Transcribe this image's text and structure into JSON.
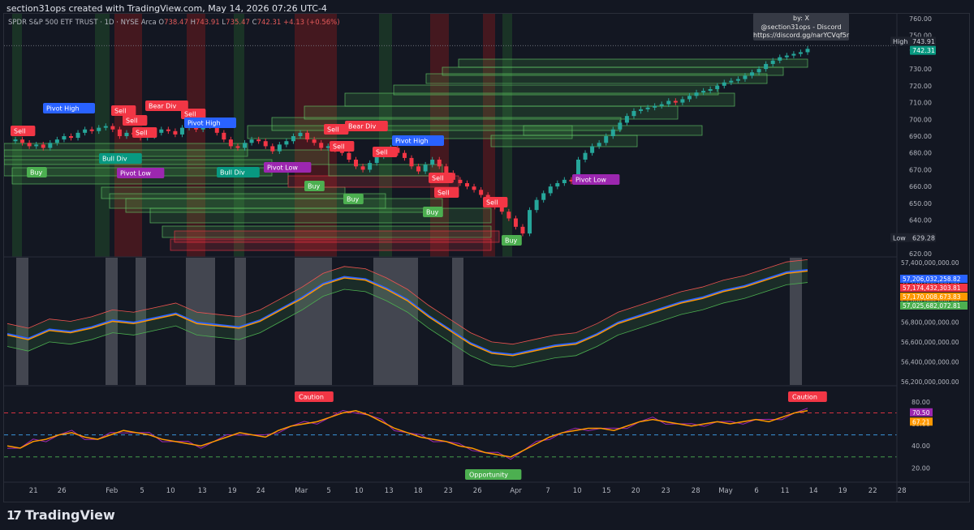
{
  "credit": "section31ops created with TradingView.com, May 14, 2026 07:26 UTC-4",
  "legend": {
    "symbol": "SPDR S&P 500 ETF TRUST · 1D · NYSE Arca",
    "o_label": "O",
    "o": "738.47",
    "h_label": "H",
    "h": "743.91",
    "l_label": "L",
    "l": "735.47",
    "c_label": "C",
    "c": "742.31",
    "change": "+4.13 (+0.56%)"
  },
  "watermark": {
    "line1": "by: X",
    "line2": "@section31ops - Discord",
    "line3": "https://discord.gg/narYCVqf5r"
  },
  "price_pane": {
    "axis_ticks": [
      "760.00",
      "750.00",
      "740.00",
      "730.00",
      "720.00",
      "710.00",
      "700.00",
      "690.00",
      "680.00",
      "670.00",
      "660.00",
      "650.00",
      "640.00",
      "630.00",
      "620.00"
    ],
    "high_label": "High",
    "high_value": "743.91",
    "last_value": "742.31",
    "low_label": "Low",
    "low_value": "629.28",
    "signals": [
      {
        "text": "Sell",
        "color": "#f23645"
      },
      {
        "text": "Pivot High",
        "color": "#2962ff"
      },
      {
        "text": "Sell",
        "color": "#f23645"
      },
      {
        "text": "Sell",
        "color": "#f23645"
      },
      {
        "text": "Sell",
        "color": "#f23645"
      },
      {
        "text": "Bear Div",
        "color": "#f23645"
      },
      {
        "text": "Sell",
        "color": "#f23645"
      },
      {
        "text": "Pivot High",
        "color": "#2962ff"
      },
      {
        "text": "Bull Div",
        "color": "#089981"
      },
      {
        "text": "Pivot Low",
        "color": "#9c27b0"
      },
      {
        "text": "Buy",
        "color": "#4caf50"
      },
      {
        "text": "Bull Div",
        "color": "#089981"
      },
      {
        "text": "Pivot Low",
        "color": "#9c27b0"
      },
      {
        "text": "Sell",
        "color": "#f23645"
      },
      {
        "text": "Bear Div",
        "color": "#f23645"
      },
      {
        "text": "Sell",
        "color": "#f23645"
      },
      {
        "text": "Sell",
        "color": "#f23645"
      },
      {
        "text": "Pivot High",
        "color": "#2962ff"
      },
      {
        "text": "Buy",
        "color": "#4caf50"
      },
      {
        "text": "Buy",
        "color": "#4caf50"
      },
      {
        "text": "Sell",
        "color": "#f23645"
      },
      {
        "text": "Sell",
        "color": "#f23645"
      },
      {
        "text": "Buy",
        "color": "#4caf50"
      },
      {
        "text": "Sell",
        "color": "#f23645"
      },
      {
        "text": "Buy",
        "color": "#4caf50"
      },
      {
        "text": "Pivot Low",
        "color": "#9c27b0"
      }
    ]
  },
  "middle_pane": {
    "axis_ticks": [
      "57,400,000,000.00",
      "57,200,000,000.00",
      "57,000,000,000.00",
      "56,800,000,000.00",
      "56,600,000,000.00",
      "56,400,000,000.00",
      "56,200,000,000.00"
    ],
    "value_labels": [
      {
        "text": "57,206,032,258.82",
        "color": "#2962ff"
      },
      {
        "text": "57,174,432,303.81",
        "color": "#f23645"
      },
      {
        "text": "57,170,008,673.83",
        "color": "#ff9800"
      },
      {
        "text": "57,025,682,072.81",
        "color": "#4caf50"
      }
    ]
  },
  "osc_pane": {
    "axis_ticks": [
      "80.00",
      "60.00",
      "40.00",
      "20.00"
    ],
    "value_labels": [
      {
        "text": "70.50",
        "color": "#9c27b0"
      },
      {
        "text": "67.21",
        "color": "#ff9800"
      }
    ],
    "signals": [
      {
        "text": "Caution",
        "color": "#f23645"
      },
      {
        "text": "Opportunity",
        "color": "#4caf50"
      },
      {
        "text": "Caution",
        "color": "#f23645"
      }
    ]
  },
  "time_axis": [
    "21",
    "26",
    "Feb",
    "5",
    "10",
    "13",
    "19",
    "24",
    "Mar",
    "5",
    "10",
    "13",
    "18",
    "23",
    "26",
    "Apr",
    "7",
    "10",
    "15",
    "20",
    "23",
    "28",
    "May",
    "6",
    "11",
    "14",
    "19",
    "22",
    "28"
  ],
  "footer": {
    "logo": "17",
    "brand": "TradingView"
  }
}
